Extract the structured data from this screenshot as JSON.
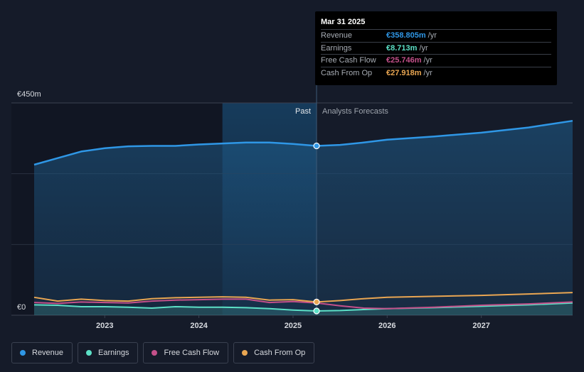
{
  "chart_data": {
    "type": "area",
    "currency": "€",
    "y_top_label": "€450m",
    "y_bottom_label": "€0",
    "ylim": [
      0,
      450
    ],
    "xlim": [
      2022.25,
      2027.97
    ],
    "x_ticks": [
      {
        "label": "2023",
        "value": 2023.0
      },
      {
        "label": "2024",
        "value": 2024.0
      },
      {
        "label": "2025",
        "value": 2025.0
      },
      {
        "label": "2026",
        "value": 2026.0
      },
      {
        "label": "2027",
        "value": 2027.0
      }
    ],
    "past_label": "Past",
    "forecast_label": "Analysts Forecasts",
    "divider_x": 2025.25,
    "highlight_start_x": 2024.25,
    "series": [
      {
        "name": "Revenue",
        "color": "#2f97e6",
        "fill": true,
        "x": [
          2022.25,
          2022.5,
          2022.75,
          2023.0,
          2023.25,
          2023.5,
          2023.75,
          2024.0,
          2024.25,
          2024.5,
          2024.75,
          2025.0,
          2025.25,
          2025.5,
          2025.75,
          2026.0,
          2026.5,
          2027.0,
          2027.5,
          2027.97
        ],
        "values": [
          319,
          333,
          347,
          354,
          358,
          359,
          359,
          362,
          364,
          366,
          366,
          363,
          359,
          361,
          366,
          372,
          379,
          387,
          398,
          412
        ]
      },
      {
        "name": "Earnings",
        "color": "#5ce0c6",
        "fill": true,
        "x": [
          2022.25,
          2022.5,
          2022.75,
          2023.0,
          2023.25,
          2023.5,
          2023.75,
          2024.0,
          2024.25,
          2024.5,
          2024.75,
          2025.0,
          2025.25,
          2025.5,
          2025.75,
          2026.0,
          2026.5,
          2027.0,
          2027.5,
          2027.97
        ],
        "values": [
          22,
          21,
          18,
          18,
          17,
          15,
          18,
          17,
          17,
          16,
          14,
          11,
          9,
          10,
          12,
          14,
          16,
          19,
          22,
          26
        ]
      },
      {
        "name": "Free Cash Flow",
        "color": "#c4508a",
        "fill": false,
        "x": [
          2022.25,
          2022.5,
          2022.75,
          2023.0,
          2023.25,
          2023.5,
          2023.75,
          2024.0,
          2024.25,
          2024.5,
          2024.75,
          2025.0,
          2025.25,
          2025.5,
          2025.75,
          2026.0,
          2026.5,
          2027.0,
          2027.5,
          2027.97
        ],
        "values": [
          27,
          25,
          28,
          27,
          26,
          30,
          32,
          33,
          34,
          34,
          27,
          29,
          26,
          20,
          15,
          14,
          17,
          21,
          24,
          28
        ]
      },
      {
        "name": "Cash From Op",
        "color": "#e9a652",
        "fill": false,
        "x": [
          2022.25,
          2022.5,
          2022.75,
          2023.0,
          2023.25,
          2023.5,
          2023.75,
          2024.0,
          2024.25,
          2024.5,
          2024.75,
          2025.0,
          2025.25,
          2025.5,
          2025.75,
          2026.0,
          2026.5,
          2027.0,
          2027.5,
          2027.97
        ],
        "values": [
          38,
          30,
          34,
          31,
          30,
          35,
          37,
          38,
          39,
          38,
          32,
          33,
          28,
          31,
          35,
          38,
          40,
          42,
          45,
          48
        ]
      }
    ]
  },
  "tooltip": {
    "date": "Mar 31 2025",
    "rows": [
      {
        "label": "Revenue",
        "value": "€358.805m",
        "unit": "/yr",
        "color": "#2f97e6"
      },
      {
        "label": "Earnings",
        "value": "€8.713m",
        "unit": "/yr",
        "color": "#5ce0c6"
      },
      {
        "label": "Free Cash Flow",
        "value": "€25.746m",
        "unit": "/yr",
        "color": "#c4508a"
      },
      {
        "label": "Cash From Op",
        "value": "€27.918m",
        "unit": "/yr",
        "color": "#e9a652"
      }
    ]
  },
  "legend": [
    {
      "label": "Revenue",
      "color": "#2f97e6"
    },
    {
      "label": "Earnings",
      "color": "#5ce0c6"
    },
    {
      "label": "Free Cash Flow",
      "color": "#c4508a"
    },
    {
      "label": "Cash From Op",
      "color": "#e9a652"
    }
  ]
}
